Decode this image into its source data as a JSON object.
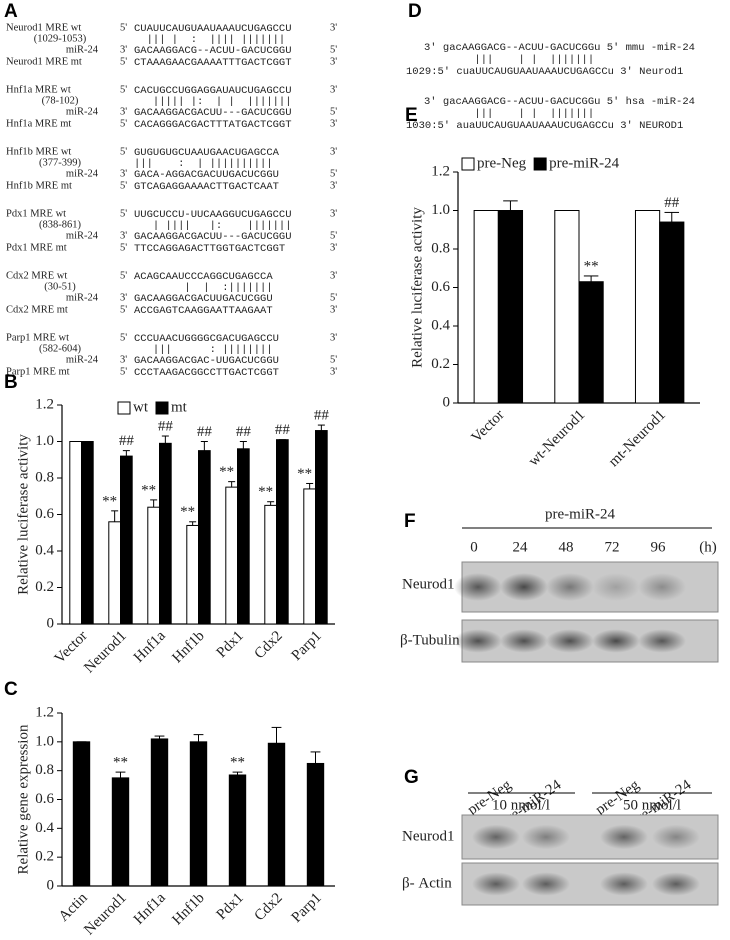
{
  "panel_a": {
    "label": "A",
    "prime5": "5'",
    "prime3": "3'",
    "groups": [
      {
        "wt": "Neurod1 MRE wt",
        "range": "(1029-1053)",
        "wt_seq": "CUAUUCAUGUAAUAAAUCUGAGCCU",
        "pairs": "  ||| |  :  |||| |||||||",
        "mir": "miR-24",
        "mir_seq": "GACAAGGACG--ACUU-GACUCGGU",
        "mt": "Neurod1 MRE mt",
        "mt_seq": "CTAAAGAACGAAAATTTGACTCGGT"
      },
      {
        "wt": "Hnf1a MRE wt",
        "range": "(78-102)",
        "wt_seq": "CACUGCCUGGAGGAUAUCUGAGCCU",
        "pairs": "   ||||| |:  | |  |||||||",
        "mir": "miR-24",
        "mir_seq": "GACAAGGACGACUU---GACUCGGU",
        "mt": "Hnf1a MRE mt",
        "mt_seq": "CACAGGGACGACTTTATGACTCGGT"
      },
      {
        "wt": "Hnf1b MRE wt",
        "range": "(377-399)",
        "wt_seq": "GUGUGUGCUAAUGAACUGAGCCA",
        "pairs": "|||    :  | ||||||||||",
        "mir": "miR-24",
        "mir_seq": "GACA-AGGACGACUUGACUCGGU",
        "mt": "Hnf1b MRE mt",
        "mt_seq": "GTCAGAGGAAAACTTGACTCAAT"
      },
      {
        "wt": "Pdx1 MRE wt",
        "range": "(838-861)",
        "wt_seq": "UUGCUCCU-UUCAAGGUCUGAGCCU",
        "pairs": "   | ||||   |:    |||||||",
        "mir": "miR-24",
        "mir_seq": "GACAAGGACGACUU---GACUCGGU",
        "mt": "Pdx1 MRE mt",
        "mt_seq": "TTCCAGGAGACTTGGTGACTCGGT"
      },
      {
        "wt": "Cdx2 MRE wt",
        "range": "(30-51)",
        "wt_seq": "ACAGCAAUCCCAGGCUGAGCCA",
        "pairs": "        |  |  :|||||||",
        "mir": "miR-24",
        "mir_seq": "GACAAGGACGACUUGACUCGGU",
        "mt": "Cdx2 MRE mt",
        "mt_seq": "ACCGAGTCAAGGAATTAAGAAT"
      },
      {
        "wt": "Parp1 MRE wt",
        "range": "(582-604)",
        "wt_seq": "CCCUAACUGGGGCGACUGAGCCU",
        "pairs": "   |||      : ||||||||",
        "mir": "miR-24",
        "mir_seq": "GACAAGGACGAC-UUGACUCGGU",
        "mt": "Parp1 MRE mt",
        "mt_seq": "CCCTAAGACGGCCTTGACTCGGT"
      }
    ]
  },
  "panel_d": {
    "label": "D",
    "blocks": [
      {
        "mir": "3' gacAAGGACG--ACUU-GACUCGGu 5' mmu -miR-24",
        "pairs": "        |||    | |  |||||||",
        "target": "1029:5' cuaUUCAUGUAAUAAAUCUGAGCCu 3' Neurod1"
      },
      {
        "mir": "3' gacAAGGACG--ACUU-GACUCGGu 5' hsa -miR-24",
        "pairs": "        |||    | |  |||||||",
        "target": "1030:5' auaUUCAUGUAAUAAAUCUGAGCCu 3' NEUROD1"
      }
    ]
  },
  "chart_data": [
    {
      "type": "bar",
      "panel": "B",
      "ylabel": "Relative luciferase activity",
      "categories": [
        "Vector",
        "Neurod1",
        "Hnf1a",
        "Hnf1b",
        "Pdx1",
        "Cdx2",
        "Parp1"
      ],
      "series": [
        {
          "name": "wt",
          "color": "#ffffff",
          "values": [
            1.0,
            0.56,
            0.64,
            0.54,
            0.75,
            0.65,
            0.74
          ],
          "errors": [
            0,
            0.06,
            0.04,
            0.02,
            0.03,
            0.02,
            0.03
          ],
          "annotations": [
            null,
            "**",
            "**",
            "**",
            "**",
            "**",
            "**"
          ]
        },
        {
          "name": "mt",
          "color": "#000000",
          "values": [
            1.0,
            0.92,
            0.99,
            0.95,
            0.96,
            1.01,
            1.06
          ],
          "errors": [
            0,
            0.03,
            0.04,
            0.05,
            0.04,
            0,
            0.03
          ],
          "annotations": [
            null,
            "##",
            "##",
            "##",
            "##",
            "##",
            "##"
          ]
        }
      ],
      "ylim": [
        0,
        1.2
      ],
      "yticks": [
        0,
        0.2,
        0.4,
        0.6,
        0.8,
        {
          "value": 1,
          "label": "1.0"
        },
        1.2
      ]
    },
    {
      "type": "bar",
      "panel": "C",
      "ylabel": "Relative gene expression",
      "categories": [
        "Actin",
        "Neurod1",
        "Hnf1a",
        "Hnf1b",
        "Pdx1",
        "Cdx2",
        "Parp1"
      ],
      "series": [
        {
          "color": "#000000",
          "values": [
            1.0,
            0.75,
            1.02,
            1.0,
            0.77,
            0.99,
            0.85
          ],
          "errors": [
            0,
            0.04,
            0.02,
            0.05,
            0.02,
            0.11,
            0.08
          ],
          "annotations": [
            null,
            "**",
            null,
            null,
            "**",
            null,
            null
          ]
        }
      ],
      "ylim": [
        0,
        1.2
      ],
      "yticks": [
        0,
        0.2,
        0.4,
        0.6,
        0.8,
        {
          "value": 1,
          "label": "1.0"
        },
        1.2
      ]
    },
    {
      "type": "bar",
      "panel": "E",
      "ylabel": "Relative luciferase activity",
      "categories": [
        "Vector",
        "wt-Neurod1",
        "mt-Neurod1"
      ],
      "series": [
        {
          "name": "pre-Neg",
          "color": "#ffffff",
          "values": [
            1.0,
            1.0,
            1.0
          ],
          "errors": [
            0,
            0,
            0
          ],
          "annotations": [
            null,
            null,
            null
          ]
        },
        {
          "name": "pre-miR-24",
          "color": "#000000",
          "values": [
            1.0,
            0.63,
            0.94
          ],
          "errors": [
            0.05,
            0.03,
            0.05
          ],
          "annotations": [
            null,
            "**",
            "##"
          ]
        }
      ],
      "ylim": [
        0,
        1.2
      ],
      "yticks": [
        0,
        0.2,
        0.4,
        0.6,
        0.8,
        {
          "value": 1,
          "label": "1.0"
        },
        1.2
      ]
    }
  ],
  "panel_f": {
    "label": "F",
    "treatment": "pre-miR-24",
    "times": [
      "0",
      "24",
      "48",
      "72",
      "96"
    ],
    "unit": "(h)",
    "rows": [
      "Neurod1",
      "β-Tubulin"
    ]
  },
  "panel_g": {
    "label": "G",
    "lanes": [
      "pre-Neg",
      "pre-miR-24",
      "pre-Neg",
      "pre-miR-24"
    ],
    "doses": [
      "10 nmol/l",
      "50 nmol/l"
    ],
    "rows": [
      "Neurod1",
      "β- Actin"
    ]
  }
}
